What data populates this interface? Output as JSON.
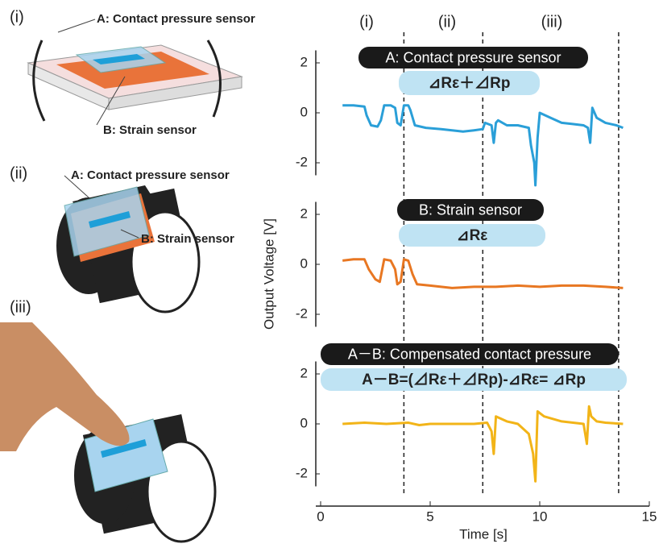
{
  "illustration": {
    "panel_i": {
      "label": "(i)",
      "sensor_a": "A: Contact pressure sensor",
      "sensor_b": "B: Strain sensor"
    },
    "panel_ii": {
      "label": "(ii)",
      "sensor_a": "A: Contact pressure sensor",
      "sensor_b": "B: Strain sensor"
    },
    "panel_iii": {
      "label": "(iii)"
    }
  },
  "phases": {
    "labels": [
      "(i)",
      "(ii)",
      "(iii)"
    ],
    "boundaries": [
      3.8,
      7.4,
      13.6
    ]
  },
  "chart_data": [
    {
      "type": "line",
      "title": "A: Contact pressure sensor",
      "formula": "⊿Rε＋⊿Rp",
      "x": [
        1,
        1.5,
        2.0,
        2.1,
        2.3,
        2.6,
        2.75,
        2.9,
        3.2,
        3.4,
        3.5,
        3.65,
        3.8,
        4.0,
        4.1,
        4.3,
        4.8,
        5.5,
        6.0,
        6.5,
        7.0,
        7.4,
        7.5,
        7.8,
        7.9,
        8.0,
        8.1,
        8.5,
        9.0,
        9.5,
        9.6,
        9.75,
        9.8,
        9.9,
        10.0,
        10.5,
        11.0,
        11.5,
        12.0,
        12.2,
        12.3,
        12.4,
        12.6,
        13.0,
        13.5,
        13.8
      ],
      "series": [
        {
          "color": "#2a9fd8",
          "values": [
            0.3,
            0.3,
            0.25,
            -0.1,
            -0.5,
            -0.55,
            -0.3,
            0.3,
            0.3,
            0.2,
            -0.4,
            -0.5,
            0.3,
            0.3,
            0.1,
            -0.5,
            -0.6,
            -0.65,
            -0.7,
            -0.75,
            -0.7,
            -0.65,
            -0.4,
            -0.5,
            -1.2,
            -0.4,
            -0.3,
            -0.5,
            -0.5,
            -0.6,
            -1.3,
            -2.0,
            -2.9,
            -1.0,
            0.0,
            -0.2,
            -0.4,
            -0.45,
            -0.5,
            -0.6,
            -1.2,
            0.2,
            -0.2,
            -0.4,
            -0.5,
            -0.6
          ]
        }
      ],
      "ylim": [
        -2.5,
        2.5
      ],
      "yticks": [
        2,
        0,
        -2
      ]
    },
    {
      "type": "line",
      "title": "B: Strain sensor",
      "formula": "⊿Rε",
      "ylabel": "Output Voltage [V]",
      "x": [
        1,
        1.5,
        2.0,
        2.2,
        2.5,
        2.7,
        2.9,
        3.2,
        3.4,
        3.5,
        3.65,
        3.8,
        4.0,
        4.2,
        4.4,
        5.0,
        6.0,
        7.0,
        8.0,
        9.0,
        10.0,
        11.0,
        12.0,
        13.0,
        13.8
      ],
      "series": [
        {
          "color": "#e87722",
          "values": [
            0.15,
            0.2,
            0.2,
            -0.2,
            -0.6,
            -0.7,
            0.2,
            0.15,
            -0.2,
            -0.8,
            -0.7,
            0.2,
            0.15,
            -0.4,
            -0.8,
            -0.85,
            -0.95,
            -0.9,
            -0.9,
            -0.85,
            -0.9,
            -0.85,
            -0.85,
            -0.9,
            -0.95
          ]
        }
      ],
      "ylim": [
        -2.5,
        2.5
      ],
      "yticks": [
        2,
        0,
        -2
      ]
    },
    {
      "type": "line",
      "title": "A－B: Compensated contact pressure",
      "formula": "A－B=(⊿Rε＋⊿Rp)-⊿Rε= ⊿Rp",
      "xlabel": "Time [s]",
      "xlim": [
        0,
        15
      ],
      "xticks": [
        0,
        5,
        10,
        15
      ],
      "x": [
        1,
        2,
        3,
        4,
        4.5,
        5,
        6,
        7,
        7.6,
        7.8,
        7.9,
        8.0,
        8.5,
        9.0,
        9.5,
        9.7,
        9.8,
        9.9,
        10.2,
        11.0,
        12.0,
        12.15,
        12.25,
        12.35,
        12.6,
        13.0,
        13.8
      ],
      "series": [
        {
          "color": "#f2b418",
          "values": [
            0.0,
            0.05,
            0.0,
            0.05,
            -0.05,
            0.0,
            0.0,
            0.0,
            0.05,
            -0.3,
            -1.2,
            0.3,
            0.1,
            0.0,
            -0.4,
            -1.2,
            -2.3,
            0.5,
            0.3,
            0.1,
            0.0,
            -0.8,
            0.7,
            0.3,
            0.1,
            0.05,
            0.0
          ]
        }
      ],
      "ylim": [
        -2.5,
        2.5
      ],
      "yticks": [
        2,
        0,
        -2
      ]
    }
  ]
}
